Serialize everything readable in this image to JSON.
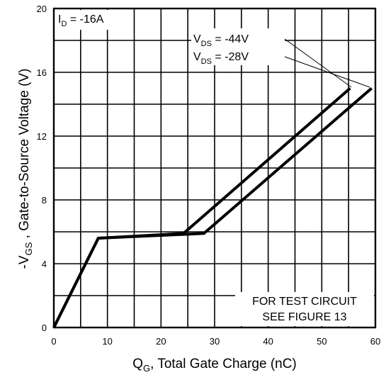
{
  "chart_data": {
    "type": "line",
    "xlabel": {
      "main": "Q",
      "sub": "G",
      "rest": ", Total Gate Charge (nC)"
    },
    "ylabel": {
      "pre": "-V",
      "sub": "GS",
      "rest": " ,  Gate-to-Source Voltage (V)"
    },
    "xlim": [
      0,
      60
    ],
    "ylim": [
      0,
      20
    ],
    "xticks": [
      0,
      10,
      20,
      30,
      40,
      50,
      60
    ],
    "yticks": [
      0,
      4,
      8,
      12,
      16,
      20
    ],
    "x_grid_step": 5,
    "y_grid_step": 2,
    "grid": true,
    "series": [
      {
        "name": "V_DS = -44V",
        "label": {
          "pre": "V",
          "sub": "DS",
          "rest": " = -44V"
        },
        "points": [
          [
            0,
            0
          ],
          [
            8.3,
            5.6
          ],
          [
            24.2,
            5.9
          ],
          [
            55.3,
            15.0
          ]
        ]
      },
      {
        "name": "V_DS = -28V",
        "label": {
          "pre": "V",
          "sub": "DS",
          "rest": " = -28V"
        },
        "points": [
          [
            0,
            0
          ],
          [
            8.3,
            5.6
          ],
          [
            28.0,
            5.9
          ],
          [
            59.3,
            15.0
          ]
        ]
      }
    ],
    "annotations": {
      "current": {
        "pre": "I",
        "sub": "D",
        "rest": " = -16A"
      },
      "note_line1": "FOR TEST CIRCUIT",
      "note_line2": "SEE FIGURE 13"
    }
  }
}
